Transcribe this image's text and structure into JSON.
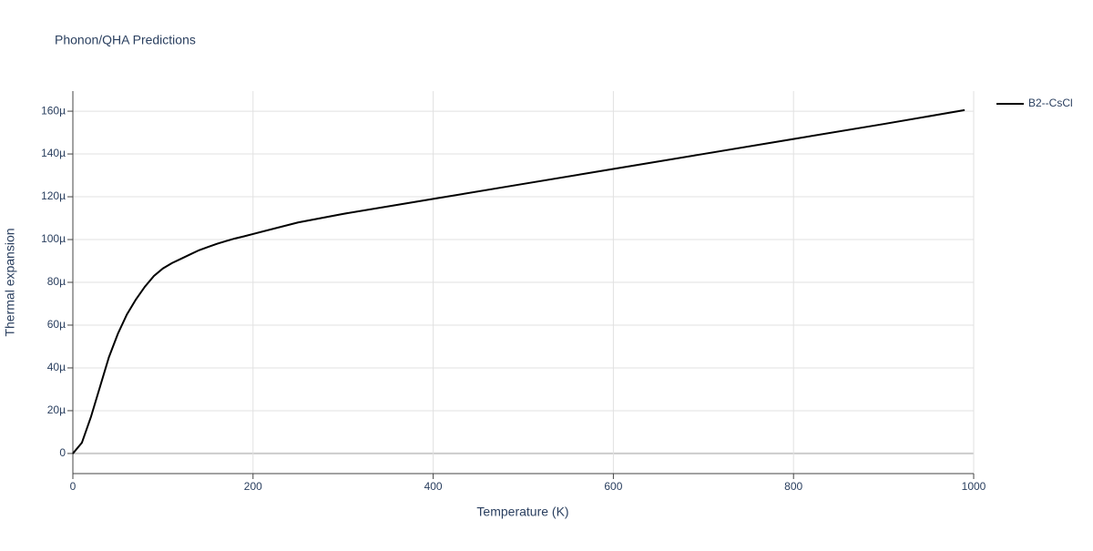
{
  "chart_data": {
    "type": "line",
    "title": "Phonon/QHA Predictions",
    "x_label": "Temperature (K)",
    "y_label": "Thermal expansion",
    "x": [
      0,
      10,
      20,
      30,
      40,
      50,
      60,
      70,
      80,
      90,
      100,
      110,
      120,
      130,
      140,
      150,
      160,
      170,
      180,
      190,
      200,
      250,
      300,
      400,
      500,
      600,
      700,
      800,
      900,
      990
    ],
    "series": [
      {
        "name": "B2--CsCl",
        "color": "#000000",
        "values": [
          0,
          5e-06,
          1.7e-05,
          3.1e-05,
          4.5e-05,
          5.6e-05,
          6.5e-05,
          7.2e-05,
          7.8e-05,
          8.3e-05,
          8.65e-05,
          8.9e-05,
          9.1e-05,
          9.3e-05,
          9.5e-05,
          9.65e-05,
          9.8e-05,
          9.93e-05,
          0.0001005,
          0.0001015,
          0.0001026,
          0.000108,
          0.000112,
          0.000119,
          0.000126,
          0.000133,
          0.00014,
          0.000147,
          0.000154,
          0.0001605
        ]
      }
    ],
    "xlim": [
      0,
      1000
    ],
    "xticks": [
      0,
      200,
      400,
      600,
      800,
      1000
    ],
    "ylim": [
      -9.4e-06,
      0.0001694
    ],
    "yticks": [
      0,
      {
        "value": 2e-05,
        "label": "20µ"
      },
      {
        "value": 4e-05,
        "label": "40µ"
      },
      {
        "value": 6e-05,
        "label": "60µ"
      },
      {
        "value": 8e-05,
        "label": "80µ"
      },
      {
        "value": 0.0001,
        "label": "100µ"
      },
      {
        "value": 0.00012,
        "label": "120µ"
      },
      {
        "value": 0.00014,
        "label": "140µ"
      },
      {
        "value": 0.00016,
        "label": "160µ"
      }
    ],
    "grid": true,
    "legend": "top-right"
  }
}
